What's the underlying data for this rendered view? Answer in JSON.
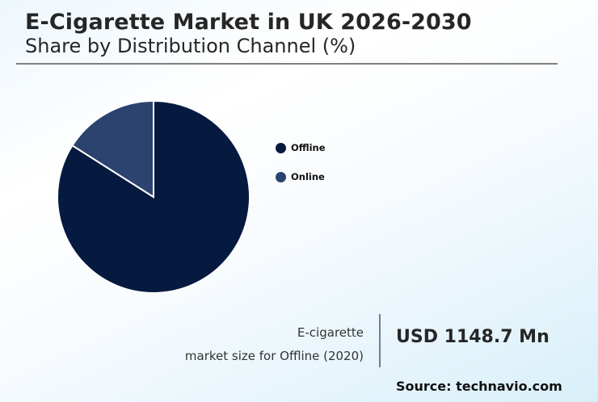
{
  "header": {
    "title": "E-Cigarette Market in UK 2026-2030",
    "subtitle": "Share by Distribution Channel (%)"
  },
  "legend": {
    "items": [
      {
        "label": "Offline",
        "color": "#061a40"
      },
      {
        "label": "Online",
        "color": "#2c426f"
      }
    ]
  },
  "kpi": {
    "caption_line1": "E-cigarette",
    "caption_line2": "market size for Offline (2020)",
    "value": "USD 1148.7 Mn"
  },
  "source": "Source: technavio.com",
  "chart_data": {
    "type": "pie",
    "title": "E-Cigarette Market in UK 2026-2030",
    "subtitle": "Share by Distribution Channel (%)",
    "categories": [
      "Offline",
      "Online"
    ],
    "values": [
      84,
      16
    ],
    "colors": [
      "#061a40",
      "#2c426f"
    ],
    "legend_position": "right",
    "start_angle": "12 o'clock, Offline clockwise",
    "annotations": [
      "E-cigarette market size for Offline (2020): USD 1148.7 Mn"
    ]
  }
}
